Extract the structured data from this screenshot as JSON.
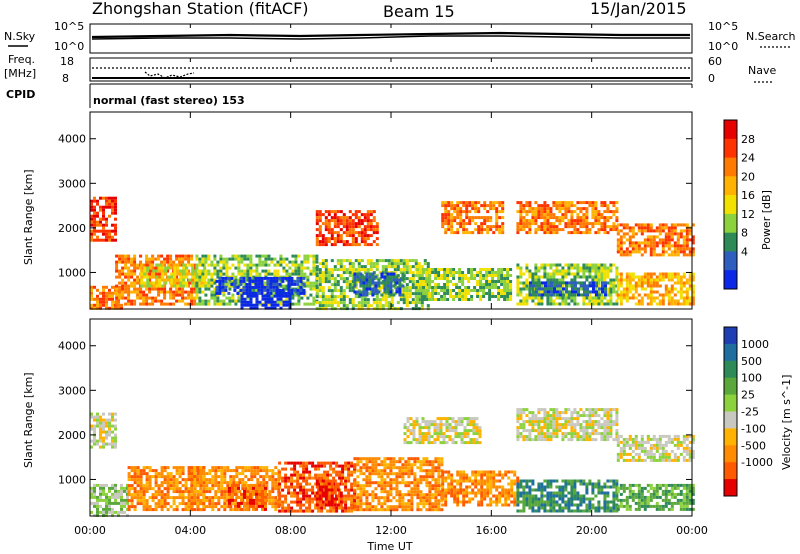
{
  "header": {
    "station": "Zhongshan Station (fitACF)",
    "beam": "Beam 15",
    "date": "15/Jan/2015"
  },
  "top_panel": {
    "left_label": "N.Sky",
    "right_label": "N.Search",
    "left_ticks": [
      "10^5",
      "10^0"
    ],
    "right_ticks": [
      "10^5",
      "10^0"
    ]
  },
  "freq_panel": {
    "left_label_1": "Freq.",
    "left_label_2": "[MHz]",
    "left_ticks": [
      "18",
      "8"
    ],
    "right_ticks": [
      "60",
      "0"
    ],
    "right_label": "Nave"
  },
  "cpid": {
    "label": "CPID",
    "text": "normal (fast stereo) 153"
  },
  "x_axis": {
    "ticks": [
      "00:00",
      "04:00",
      "08:00",
      "12:00",
      "16:00",
      "20:00",
      "00:00"
    ],
    "label": "Time UT"
  },
  "chart_data": [
    {
      "type": "heatmap",
      "panel": "power",
      "ylabel": "Slant Range [km]",
      "yticks": [
        1000,
        2000,
        3000,
        4000
      ],
      "xlim_hours": [
        0,
        24
      ],
      "ylim_km": [
        180,
        4600
      ],
      "colorbar": {
        "label": "Power [dB]",
        "ticks": [
          "28",
          "24",
          "20",
          "16",
          "12",
          "8",
          "4"
        ],
        "colors": [
          "#e60000",
          "#ff3300",
          "#ff7a00",
          "#ffb300",
          "#f2e000",
          "#8cd23c",
          "#2e8b57",
          "#2e5fbf",
          "#0a28e6"
        ]
      },
      "bands": [
        {
          "t0": 0.0,
          "t1": 1.3,
          "r0": 200,
          "r1": 700,
          "level": 2
        },
        {
          "t0": 0.0,
          "t1": 1.0,
          "r0": 1700,
          "r1": 2700,
          "level": 1
        },
        {
          "t0": 1.0,
          "t1": 4.2,
          "r0": 300,
          "r1": 1400,
          "level": 2
        },
        {
          "t0": 2.0,
          "t1": 4.6,
          "r0": 700,
          "r1": 1200,
          "level": 4
        },
        {
          "t0": 4.2,
          "t1": 9.0,
          "r0": 300,
          "r1": 1400,
          "level": 5
        },
        {
          "t0": 5.0,
          "t1": 8.5,
          "r0": 500,
          "r1": 900,
          "level": 8
        },
        {
          "t0": 6.0,
          "t1": 8.0,
          "r0": 200,
          "r1": 500,
          "level": 9
        },
        {
          "t0": 9.0,
          "t1": 13.5,
          "r0": 200,
          "r1": 1300,
          "level": 5
        },
        {
          "t0": 10.5,
          "t1": 12.5,
          "r0": 500,
          "r1": 1000,
          "level": 7
        },
        {
          "t0": 9.0,
          "t1": 11.5,
          "r0": 1600,
          "r1": 2400,
          "level": 1
        },
        {
          "t0": 13.0,
          "t1": 16.8,
          "r0": 400,
          "r1": 1100,
          "level": 5
        },
        {
          "t0": 14.0,
          "t1": 16.5,
          "r0": 1900,
          "r1": 2600,
          "level": 2
        },
        {
          "t0": 17.0,
          "t1": 21.0,
          "r0": 300,
          "r1": 1200,
          "level": 5
        },
        {
          "t0": 17.5,
          "t1": 20.5,
          "r0": 500,
          "r1": 800,
          "level": 7
        },
        {
          "t0": 17.0,
          "t1": 21.0,
          "r0": 1900,
          "r1": 2600,
          "level": 2
        },
        {
          "t0": 21.0,
          "t1": 24.0,
          "r0": 300,
          "r1": 1000,
          "level": 3
        },
        {
          "t0": 21.0,
          "t1": 24.0,
          "r0": 1400,
          "r1": 2100,
          "level": 2
        }
      ]
    },
    {
      "type": "heatmap",
      "panel": "velocity",
      "ylabel": "Slant Range [km]",
      "yticks": [
        1000,
        2000,
        3000,
        4000
      ],
      "xlim_hours": [
        0,
        24
      ],
      "ylim_km": [
        180,
        4600
      ],
      "colorbar": {
        "label": "Velocity [m s^-1]",
        "ticks": [
          "1000",
          "500",
          "100",
          "25",
          "-25",
          "-100",
          "-500",
          "-1000"
        ],
        "colors": [
          "#1e3fb4",
          "#1e6ea0",
          "#2e8b57",
          "#5aa83c",
          "#8cd23c",
          "#c8c8c0",
          "#ffb300",
          "#ff8c00",
          "#ff5a00",
          "#e60000"
        ]
      },
      "bands": [
        {
          "t0": 0.0,
          "t1": 1.5,
          "r0": 200,
          "r1": 900,
          "level": 4
        },
        {
          "t0": 0.0,
          "t1": 1.0,
          "r0": 1700,
          "r1": 2500,
          "level": 5
        },
        {
          "t0": 1.5,
          "t1": 4.5,
          "r0": 300,
          "r1": 1300,
          "level": 7
        },
        {
          "t0": 4.0,
          "t1": 7.5,
          "r0": 300,
          "r1": 1300,
          "level": 7
        },
        {
          "t0": 5.5,
          "t1": 7.0,
          "r0": 300,
          "r1": 900,
          "level": 8
        },
        {
          "t0": 7.5,
          "t1": 10.5,
          "r0": 300,
          "r1": 1400,
          "level": 8
        },
        {
          "t0": 9.0,
          "t1": 10.0,
          "r0": 400,
          "r1": 1000,
          "level": 9
        },
        {
          "t0": 10.5,
          "t1": 14.0,
          "r0": 300,
          "r1": 1500,
          "level": 7
        },
        {
          "t0": 12.5,
          "t1": 15.5,
          "r0": 1800,
          "r1": 2400,
          "level": 5
        },
        {
          "t0": 14.0,
          "t1": 17.0,
          "r0": 400,
          "r1": 1200,
          "level": 7
        },
        {
          "t0": 17.0,
          "t1": 21.0,
          "r0": 300,
          "r1": 1000,
          "level": 2
        },
        {
          "t0": 17.0,
          "t1": 21.0,
          "r0": 1900,
          "r1": 2600,
          "level": 5
        },
        {
          "t0": 21.0,
          "t1": 24.0,
          "r0": 300,
          "r1": 900,
          "level": 3
        },
        {
          "t0": 21.0,
          "t1": 24.0,
          "r0": 1400,
          "r1": 2000,
          "level": 5
        }
      ]
    }
  ]
}
